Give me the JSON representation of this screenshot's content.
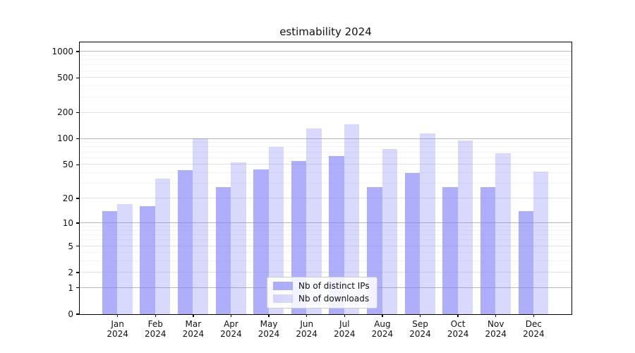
{
  "chart_data": {
    "type": "bar",
    "title": "estimability 2024",
    "categories": [
      "Jan",
      "Feb",
      "Mar",
      "Apr",
      "May",
      "Jun",
      "Jul",
      "Aug",
      "Sep",
      "Oct",
      "Nov",
      "Dec"
    ],
    "year_label": "2024",
    "series": [
      {
        "name": "Nb of distinct IPs",
        "color": "rgba(130,130,248,0.65)",
        "values": [
          14,
          16,
          43,
          27,
          44,
          55,
          62,
          27,
          40,
          27,
          27,
          14
        ]
      },
      {
        "name": "Nb of downloads",
        "color": "rgba(130,130,248,0.30)",
        "values": [
          17,
          34,
          100,
          53,
          80,
          130,
          145,
          75,
          115,
          95,
          68,
          41
        ]
      }
    ],
    "y_scale": "log1p",
    "ylim": [
      0,
      1272
    ],
    "y_tick_values": [
      0,
      1,
      2,
      5,
      10,
      20,
      50,
      100,
      200,
      500,
      1000
    ],
    "y_tick_labels": [
      "0",
      "1",
      "2",
      "5",
      "10",
      "20",
      "50",
      "100",
      "200",
      "500",
      "1000"
    ],
    "gridlines": {
      "major": [
        1,
        10,
        100,
        1000
      ],
      "mid": [
        2,
        5,
        20,
        50,
        200,
        500
      ],
      "minor": [
        3,
        4,
        6,
        7,
        8,
        9,
        30,
        40,
        60,
        70,
        80,
        90,
        300,
        400,
        600,
        700,
        800,
        900
      ]
    },
    "grid": true,
    "legend_position": "lower-center-inside",
    "colors": {
      "grid_major": "#b8b8b8",
      "grid_mid": "#e2e2e2",
      "grid_minor": "#f3f3f3",
      "axis": "#000000",
      "text": "#111111"
    }
  }
}
